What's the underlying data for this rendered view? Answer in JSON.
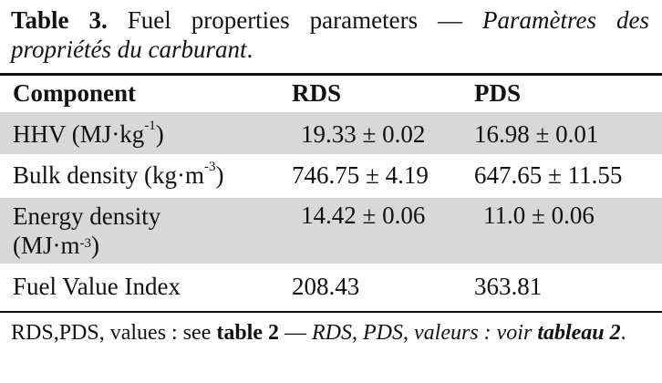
{
  "caption": {
    "label": "Table 3.",
    "title_en": " Fuel properties parameters — ",
    "title_fr": "Paramètres des propriétés du carburant",
    "end": "."
  },
  "table": {
    "headers": [
      "Component",
      "RDS",
      "PDS"
    ],
    "rows": [
      {
        "component": "HHV (MJ·kg",
        "component_sup": "-1",
        "component_tail": ")",
        "rds": "19.33 ± 0.02",
        "pds": "16.98 ± 0.01"
      },
      {
        "component": "Bulk density (kg·m",
        "component_sup": "-3",
        "component_tail": ")",
        "rds": "746.75 ± 4.19",
        "pds": "647.65 ± 11.55"
      },
      {
        "component": "Energy density",
        "component_line2": "(MJ·m",
        "component_sup": "-3",
        "component_tail": ")",
        "rds": "14.42 ± 0.06",
        "pds": "11.0 ± 0.06"
      },
      {
        "component": "Fuel Value Index",
        "rds": "208.43",
        "pds": "363.81"
      }
    ]
  },
  "note": {
    "prefix": "RDS,PDS, values : see ",
    "ref_bold": "table 2",
    "dash": " — ",
    "fr_text": "RDS, PDS, valeurs : voir ",
    "fr_ref": "tableau 2",
    "end": "."
  }
}
